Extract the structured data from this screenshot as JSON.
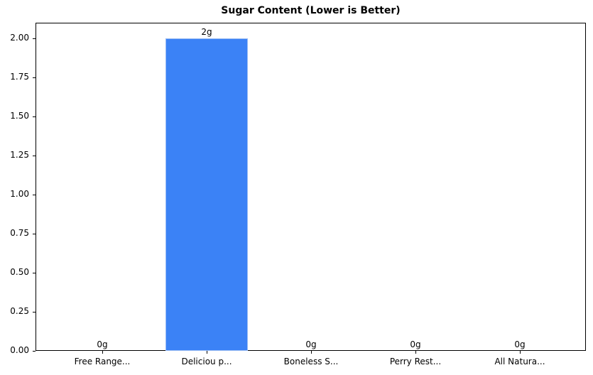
{
  "chart_data": {
    "type": "bar",
    "title": "Sugar Content (Lower is Better)",
    "xlabel": "",
    "ylabel": "",
    "categories": [
      "Free Range...",
      "Deliciou p...",
      "Boneless S...",
      "Perry Rest...",
      "All Natura..."
    ],
    "values": [
      0,
      2,
      0,
      0,
      0
    ],
    "value_labels": [
      "0g",
      "2g",
      "0g",
      "0g",
      "0g"
    ],
    "ylim": [
      0,
      2.1
    ],
    "yticks": [
      "0.00",
      "0.25",
      "0.50",
      "0.75",
      "1.00",
      "1.25",
      "1.50",
      "1.75",
      "2.00"
    ],
    "grid": false,
    "legend": null,
    "bar_color": "#3b82f6"
  }
}
